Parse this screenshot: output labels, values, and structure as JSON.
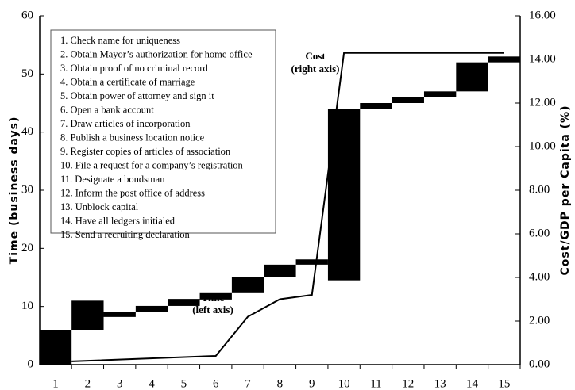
{
  "chart_data": {
    "type": "floating-bar",
    "categories": [
      "1",
      "2",
      "3",
      "4",
      "5",
      "6",
      "7",
      "8",
      "9",
      "10",
      "11",
      "12",
      "13",
      "14",
      "15"
    ],
    "bars": {
      "color": "#000000",
      "starts": [
        0,
        6,
        8.2,
        9.1,
        10.1,
        11.2,
        12.3,
        15.1,
        17.2,
        14.5,
        44,
        45,
        46,
        47,
        52
      ],
      "ends": [
        6,
        11,
        9.1,
        10.1,
        11.3,
        12.3,
        15.1,
        17.2,
        18.1,
        44,
        45,
        46,
        47,
        52,
        53
      ]
    },
    "line": {
      "axis": "y2",
      "color": "#000000",
      "x": [
        1.5,
        6,
        7,
        8,
        9,
        10,
        15
      ],
      "values": [
        0.15,
        0.4,
        2.2,
        3.0,
        3.2,
        14.3,
        14.3
      ]
    },
    "ylabel": "Time (business days)",
    "y2label": "Cost/GDP per Capita (%)",
    "ylim": [
      0,
      60
    ],
    "yticks": [
      0,
      10,
      20,
      30,
      40,
      50,
      60
    ],
    "y2lim": [
      0,
      16
    ],
    "y2ticks": [
      {
        "value": 0,
        "label": "0.00"
      },
      {
        "value": 2,
        "label": "2.00"
      },
      {
        "value": 4,
        "label": "4.00"
      },
      {
        "value": 6,
        "label": "6.00"
      },
      {
        "value": 8,
        "label": "8.00"
      },
      {
        "value": 10,
        "label": "10.00"
      },
      {
        "value": 12,
        "label": "12.00"
      },
      {
        "value": 14,
        "label": "14.00"
      },
      {
        "value": 16,
        "label": "16.00"
      }
    ],
    "annotations": {
      "cost": [
        "Cost",
        "(right axis)"
      ],
      "time": [
        "Time",
        "(left axis)"
      ]
    },
    "steps": [
      "1.   Check name for uniqueness",
      "2.   Obtain Mayor’s authorization for home office",
      "3.   Obtain proof of no criminal record",
      "4.   Obtain a certificate of marriage",
      "5.   Obtain power of attorney and sign it",
      "6.   Open a bank account",
      "7.   Draw articles of incorporation",
      "8.   Publish a business location notice",
      "9.   Register copies of articles of association",
      "10. File a request for a company’s registration",
      "11. Designate a bondsman",
      "12. Inform the post office of address",
      "13. Unblock capital",
      "14. Have all ledgers initialed",
      "15. Send a recruiting declaration"
    ]
  }
}
